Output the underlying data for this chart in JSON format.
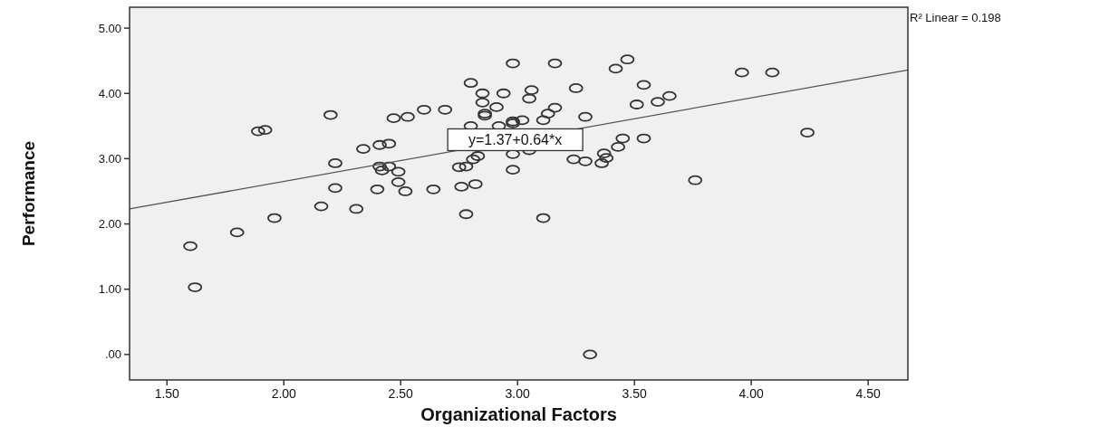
{
  "chart_data": {
    "type": "scatter",
    "xlabel": "Organizational Factors",
    "ylabel": "Performance",
    "xlim": [
      1.34,
      4.67
    ],
    "ylim": [
      -0.39,
      5.32
    ],
    "xticks": [
      {
        "value": 1.5,
        "label": "1.50"
      },
      {
        "value": 2,
        "label": "2.00"
      },
      {
        "value": 2.5,
        "label": "2.50"
      },
      {
        "value": 3,
        "label": "3.00"
      },
      {
        "value": 3.5,
        "label": "3.50"
      },
      {
        "value": 4,
        "label": "4.00"
      },
      {
        "value": 4.5,
        "label": "4.50"
      }
    ],
    "yticks": [
      {
        "value": 0,
        "label": ".00"
      },
      {
        "value": 1,
        "label": "1.00"
      },
      {
        "value": 2,
        "label": "2.00"
      },
      {
        "value": 3,
        "label": "3.00"
      },
      {
        "value": 4,
        "label": "4.00"
      },
      {
        "value": 5,
        "label": "5.00"
      }
    ],
    "grid": false,
    "marker": "circle",
    "annotations": [
      {
        "text": "y=1.37+0.64*x",
        "x": 2.99,
        "y": 3.29
      },
      "R² Linear = 0.198"
    ],
    "series": [
      {
        "color": "#333333",
        "x": [
          2.98,
          3.16,
          3.47,
          3.42,
          3.96,
          4.09,
          2.8,
          3.54,
          3.25,
          3.06,
          2.85,
          2.94,
          3.05,
          3.65,
          2.85,
          3.6,
          3.51,
          2.91,
          3.16,
          2.86,
          2.86,
          3.13,
          2.6,
          2.69,
          2.2,
          2.53,
          2.47,
          3.29,
          3.02,
          3.11,
          2.98,
          2.98,
          2.8,
          2.92,
          1.92,
          1.89,
          4.24,
          3.45,
          3.54,
          2.45,
          2.41,
          3.43,
          2.34,
          3.05,
          3.37,
          2.98,
          2.83,
          3.38,
          2.81,
          3.24,
          3.29,
          2.22,
          3.36,
          2.78,
          2.75,
          2.41,
          2.45,
          2.98,
          2.42,
          2.49,
          3.76,
          2.49,
          2.82,
          2.76,
          2.22,
          2.4,
          2.64,
          2.52,
          2.16,
          2.31,
          2.78,
          3.11,
          1.96,
          1.8,
          1.6,
          1.62,
          3.31
        ],
        "values": [
          4.46,
          4.46,
          4.52,
          4.38,
          4.32,
          4.32,
          4.16,
          4.13,
          4.08,
          4.05,
          4.0,
          4.0,
          3.92,
          3.96,
          3.86,
          3.87,
          3.83,
          3.79,
          3.78,
          3.69,
          3.66,
          3.69,
          3.75,
          3.75,
          3.67,
          3.64,
          3.62,
          3.64,
          3.59,
          3.59,
          3.57,
          3.54,
          3.5,
          3.5,
          3.44,
          3.42,
          3.4,
          3.31,
          3.31,
          3.23,
          3.21,
          3.18,
          3.15,
          3.13,
          3.08,
          3.07,
          3.04,
          3.01,
          2.99,
          2.99,
          2.96,
          2.93,
          2.93,
          2.88,
          2.87,
          2.88,
          2.88,
          2.83,
          2.82,
          2.8,
          2.67,
          2.64,
          2.61,
          2.57,
          2.55,
          2.53,
          2.53,
          2.5,
          2.27,
          2.23,
          2.15,
          2.09,
          2.09,
          1.87,
          1.66,
          1.03,
          0.0
        ]
      },
      {
        "type": "line",
        "color": "#555555",
        "marker": "none",
        "x": [
          1.34,
          4.67
        ],
        "values": [
          2.23,
          4.36
        ]
      }
    ]
  }
}
